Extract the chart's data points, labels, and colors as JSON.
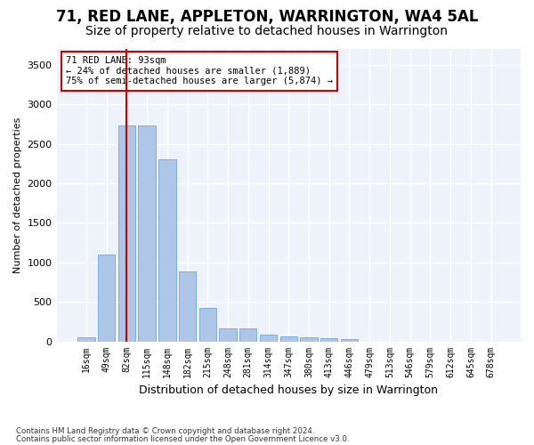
{
  "title": "71, RED LANE, APPLETON, WARRINGTON, WA4 5AL",
  "subtitle": "Size of property relative to detached houses in Warrington",
  "xlabel": "Distribution of detached houses by size in Warrington",
  "ylabel": "Number of detached properties",
  "bar_values": [
    50,
    1100,
    2730,
    2730,
    2300,
    880,
    420,
    165,
    165,
    90,
    60,
    55,
    35,
    25,
    0,
    0,
    0,
    0,
    0,
    0,
    0
  ],
  "bar_labels": [
    "16sqm",
    "49sqm",
    "82sqm",
    "115sqm",
    "148sqm",
    "182sqm",
    "215sqm",
    "248sqm",
    "281sqm",
    "314sqm",
    "347sqm",
    "380sqm",
    "413sqm",
    "446sqm",
    "479sqm",
    "513sqm",
    "546sqm",
    "579sqm",
    "612sqm",
    "645sqm",
    "678sqm"
  ],
  "bar_color": "#aec6e8",
  "bar_edge_color": "#5b9bd5",
  "background_color": "#eef2fb",
  "grid_color": "#ffffff",
  "vline_x": 2,
  "vline_color": "#cc0000",
  "annotation_line1": "71 RED LANE: 93sqm",
  "annotation_line2": "← 24% of detached houses are smaller (1,889)",
  "annotation_line3": "75% of semi-detached houses are larger (5,874) →",
  "annotation_box_color": "#ffffff",
  "annotation_box_edge": "#cc0000",
  "ylim": [
    0,
    3700
  ],
  "yticks": [
    0,
    500,
    1000,
    1500,
    2000,
    2500,
    3000,
    3500
  ],
  "footer1": "Contains HM Land Registry data © Crown copyright and database right 2024.",
  "footer2": "Contains public sector information licensed under the Open Government Licence v3.0.",
  "title_fontsize": 12,
  "subtitle_fontsize": 10
}
